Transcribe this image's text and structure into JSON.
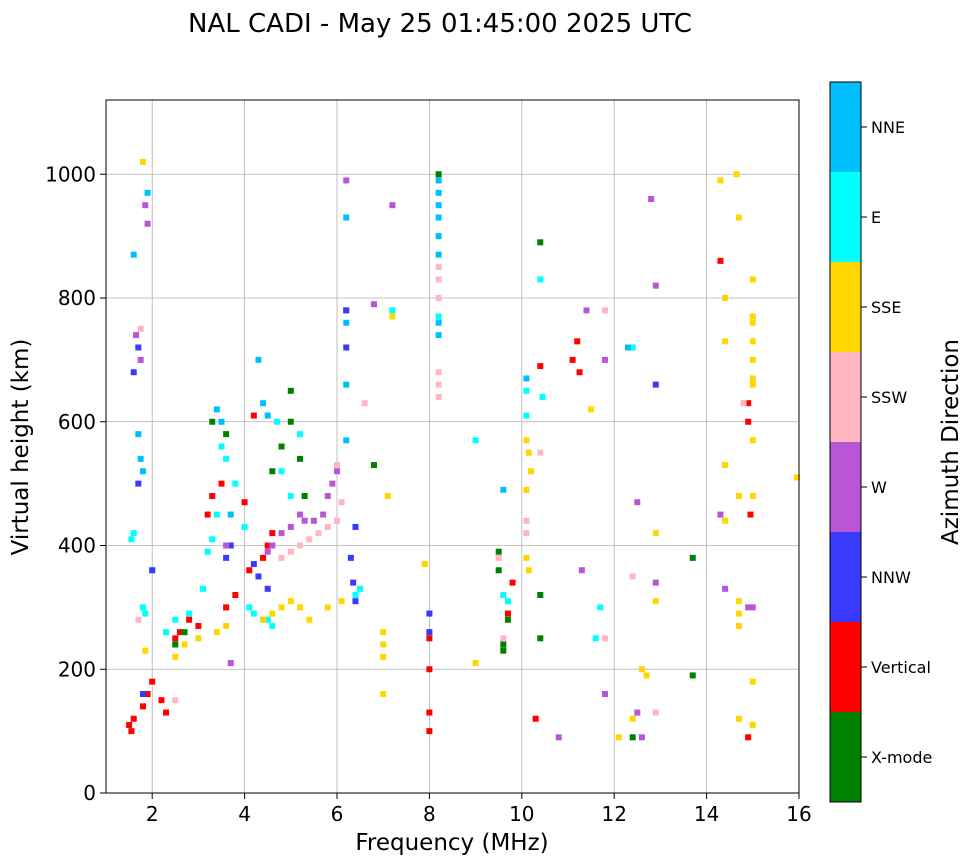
{
  "chart_data": {
    "type": "scatter",
    "title": "NAL CADI - May 25 01:45:00 2025 UTC",
    "xlabel": "Frequency (MHz)",
    "ylabel": "Virtual height (km)",
    "xlim": [
      1.0,
      16.0
    ],
    "ylim": [
      0,
      1120
    ],
    "xticks": [
      "2",
      "4",
      "6",
      "8",
      "10",
      "12",
      "14",
      "16"
    ],
    "yticks": [
      "0",
      "200",
      "400",
      "600",
      "800",
      "1000"
    ],
    "grid": true,
    "colorbar": {
      "label": "Azimuth Direction",
      "categories": [
        {
          "name": "X-mode",
          "color": "#008000"
        },
        {
          "name": "Vertical",
          "color": "#ff0000"
        },
        {
          "name": "NNW",
          "color": "#3a3aff"
        },
        {
          "name": "W",
          "color": "#b856d6"
        },
        {
          "name": "SSW",
          "color": "#ffb6c1"
        },
        {
          "name": "SSE",
          "color": "#ffd700"
        },
        {
          "name": "E",
          "color": "#00ffff"
        },
        {
          "name": "NNE",
          "color": "#00bfff"
        }
      ]
    },
    "series": [
      {
        "name": "E",
        "color": "#00ffff",
        "points": [
          [
            1.55,
            410
          ],
          [
            1.6,
            420
          ],
          [
            1.8,
            300
          ],
          [
            1.85,
            290
          ],
          [
            2.0,
            360
          ],
          [
            2.3,
            260
          ],
          [
            2.5,
            280
          ],
          [
            2.8,
            290
          ],
          [
            3.1,
            330
          ],
          [
            3.2,
            390
          ],
          [
            3.3,
            410
          ],
          [
            3.4,
            450
          ],
          [
            3.5,
            560
          ],
          [
            3.6,
            540
          ],
          [
            3.8,
            500
          ],
          [
            4.0,
            430
          ],
          [
            4.1,
            300
          ],
          [
            4.2,
            290
          ],
          [
            4.4,
            280
          ],
          [
            4.5,
            280
          ],
          [
            4.6,
            270
          ],
          [
            4.7,
            600
          ],
          [
            4.8,
            520
          ],
          [
            5.0,
            480
          ],
          [
            5.2,
            580
          ],
          [
            6.4,
            320
          ],
          [
            6.5,
            330
          ],
          [
            7.2,
            780
          ],
          [
            8.2,
            770
          ],
          [
            9.0,
            570
          ],
          [
            9.6,
            320
          ],
          [
            9.7,
            310
          ],
          [
            10.1,
            650
          ],
          [
            10.1,
            610
          ],
          [
            10.4,
            830
          ],
          [
            10.45,
            640
          ],
          [
            11.6,
            250
          ],
          [
            11.7,
            300
          ],
          [
            12.4,
            720
          ]
        ]
      },
      {
        "name": "NNE",
        "color": "#00bfff",
        "points": [
          [
            1.6,
            870
          ],
          [
            1.7,
            580
          ],
          [
            1.75,
            540
          ],
          [
            1.8,
            520
          ],
          [
            1.9,
            970
          ],
          [
            3.4,
            620
          ],
          [
            3.5,
            600
          ],
          [
            3.7,
            450
          ],
          [
            4.3,
            700
          ],
          [
            4.4,
            630
          ],
          [
            4.5,
            610
          ],
          [
            6.2,
            930
          ],
          [
            6.2,
            660
          ],
          [
            6.2,
            570
          ],
          [
            6.2,
            760
          ],
          [
            6.2,
            780
          ],
          [
            8.2,
            990
          ],
          [
            8.2,
            970
          ],
          [
            8.2,
            950
          ],
          [
            8.2,
            930
          ],
          [
            8.2,
            900
          ],
          [
            8.2,
            870
          ],
          [
            8.2,
            760
          ],
          [
            8.2,
            740
          ],
          [
            9.6,
            490
          ],
          [
            10.1,
            670
          ],
          [
            12.3,
            720
          ]
        ]
      },
      {
        "name": "Vertical",
        "color": "#ff0000",
        "points": [
          [
            1.5,
            110
          ],
          [
            1.55,
            100
          ],
          [
            1.6,
            120
          ],
          [
            1.8,
            140
          ],
          [
            1.9,
            160
          ],
          [
            2.0,
            180
          ],
          [
            2.2,
            150
          ],
          [
            2.3,
            130
          ],
          [
            2.5,
            250
          ],
          [
            2.6,
            260
          ],
          [
            2.8,
            280
          ],
          [
            3.0,
            270
          ],
          [
            3.2,
            450
          ],
          [
            3.3,
            480
          ],
          [
            3.5,
            500
          ],
          [
            3.6,
            300
          ],
          [
            3.8,
            320
          ],
          [
            4.0,
            470
          ],
          [
            4.1,
            360
          ],
          [
            4.2,
            610
          ],
          [
            4.4,
            380
          ],
          [
            4.5,
            400
          ],
          [
            4.6,
            420
          ],
          [
            8.0,
            250
          ],
          [
            8.0,
            200
          ],
          [
            8.0,
            130
          ],
          [
            8.0,
            100
          ],
          [
            9.7,
            290
          ],
          [
            9.8,
            340
          ],
          [
            10.3,
            120
          ],
          [
            10.4,
            690
          ],
          [
            11.1,
            700
          ],
          [
            11.2,
            730
          ],
          [
            11.25,
            680
          ],
          [
            14.3,
            860
          ],
          [
            14.9,
            600
          ],
          [
            14.9,
            630
          ],
          [
            14.95,
            450
          ],
          [
            14.9,
            90
          ]
        ]
      },
      {
        "name": "NNW",
        "color": "#3a3aff",
        "points": [
          [
            1.6,
            680
          ],
          [
            1.7,
            720
          ],
          [
            1.7,
            500
          ],
          [
            1.8,
            160
          ],
          [
            2.0,
            360
          ],
          [
            3.6,
            380
          ],
          [
            3.7,
            400
          ],
          [
            4.2,
            370
          ],
          [
            4.3,
            350
          ],
          [
            4.5,
            330
          ],
          [
            6.3,
            380
          ],
          [
            6.35,
            340
          ],
          [
            6.4,
            310
          ],
          [
            6.4,
            430
          ],
          [
            6.2,
            720
          ],
          [
            6.2,
            780
          ],
          [
            8.0,
            290
          ],
          [
            8.0,
            260
          ],
          [
            12.9,
            660
          ]
        ]
      },
      {
        "name": "W",
        "color": "#b856d6",
        "points": [
          [
            1.65,
            740
          ],
          [
            1.75,
            700
          ],
          [
            1.85,
            950
          ],
          [
            1.9,
            920
          ],
          [
            3.6,
            400
          ],
          [
            3.7,
            210
          ],
          [
            4.5,
            390
          ],
          [
            4.6,
            400
          ],
          [
            4.8,
            420
          ],
          [
            5.0,
            430
          ],
          [
            5.2,
            450
          ],
          [
            5.3,
            440
          ],
          [
            5.5,
            440
          ],
          [
            5.7,
            450
          ],
          [
            5.8,
            480
          ],
          [
            5.9,
            500
          ],
          [
            6.0,
            520
          ],
          [
            6.2,
            990
          ],
          [
            7.2,
            950
          ],
          [
            6.8,
            790
          ],
          [
            11.3,
            360
          ],
          [
            11.4,
            780
          ],
          [
            11.8,
            700
          ],
          [
            11.8,
            160
          ],
          [
            12.5,
            470
          ],
          [
            12.8,
            960
          ],
          [
            12.9,
            820
          ],
          [
            12.9,
            340
          ],
          [
            14.3,
            450
          ],
          [
            14.4,
            330
          ],
          [
            14.9,
            300
          ],
          [
            15.0,
            300
          ],
          [
            12.5,
            130
          ],
          [
            12.6,
            90
          ],
          [
            10.8,
            90
          ]
        ]
      },
      {
        "name": "SSW",
        "color": "#ffb6c1",
        "points": [
          [
            1.7,
            280
          ],
          [
            1.75,
            750
          ],
          [
            2.5,
            150
          ],
          [
            4.8,
            380
          ],
          [
            5.0,
            390
          ],
          [
            5.2,
            400
          ],
          [
            5.4,
            410
          ],
          [
            5.6,
            420
          ],
          [
            5.8,
            430
          ],
          [
            6.0,
            440
          ],
          [
            6.1,
            470
          ],
          [
            6.0,
            530
          ],
          [
            6.6,
            630
          ],
          [
            8.2,
            850
          ],
          [
            8.2,
            830
          ],
          [
            8.2,
            800
          ],
          [
            8.2,
            680
          ],
          [
            8.2,
            660
          ],
          [
            8.2,
            640
          ],
          [
            9.5,
            380
          ],
          [
            9.6,
            250
          ],
          [
            10.1,
            440
          ],
          [
            10.1,
            420
          ],
          [
            10.4,
            550
          ],
          [
            11.8,
            780
          ],
          [
            11.8,
            250
          ],
          [
            12.4,
            350
          ],
          [
            12.9,
            130
          ],
          [
            14.8,
            630
          ]
        ]
      },
      {
        "name": "SSE",
        "color": "#ffd700",
        "points": [
          [
            1.8,
            1020
          ],
          [
            1.85,
            230
          ],
          [
            2.5,
            220
          ],
          [
            2.7,
            240
          ],
          [
            3.0,
            250
          ],
          [
            3.4,
            260
          ],
          [
            3.6,
            270
          ],
          [
            4.4,
            280
          ],
          [
            4.6,
            290
          ],
          [
            4.8,
            300
          ],
          [
            5.0,
            310
          ],
          [
            5.2,
            300
          ],
          [
            5.4,
            280
          ],
          [
            5.8,
            300
          ],
          [
            6.1,
            310
          ],
          [
            7.0,
            260
          ],
          [
            7.0,
            240
          ],
          [
            7.0,
            220
          ],
          [
            7.0,
            160
          ],
          [
            7.1,
            480
          ],
          [
            7.2,
            770
          ],
          [
            7.9,
            370
          ],
          [
            9.0,
            210
          ],
          [
            10.1,
            570
          ],
          [
            10.15,
            550
          ],
          [
            10.2,
            520
          ],
          [
            10.1,
            490
          ],
          [
            10.1,
            380
          ],
          [
            10.15,
            360
          ],
          [
            11.5,
            620
          ],
          [
            12.1,
            90
          ],
          [
            12.4,
            120
          ],
          [
            12.6,
            200
          ],
          [
            12.7,
            190
          ],
          [
            12.9,
            420
          ],
          [
            12.9,
            310
          ],
          [
            14.3,
            990
          ],
          [
            14.4,
            800
          ],
          [
            14.4,
            730
          ],
          [
            14.4,
            530
          ],
          [
            14.4,
            440
          ],
          [
            14.65,
            1000
          ],
          [
            14.7,
            930
          ],
          [
            14.7,
            480
          ],
          [
            14.7,
            310
          ],
          [
            14.7,
            290
          ],
          [
            14.7,
            270
          ],
          [
            14.7,
            120
          ],
          [
            15.0,
            830
          ],
          [
            15.0,
            770
          ],
          [
            15.0,
            760
          ],
          [
            15.0,
            730
          ],
          [
            15.0,
            700
          ],
          [
            15.0,
            670
          ],
          [
            15.0,
            660
          ],
          [
            15.0,
            570
          ],
          [
            15.0,
            480
          ],
          [
            15.0,
            180
          ],
          [
            15.0,
            110
          ],
          [
            16.0,
            510
          ]
        ]
      },
      {
        "name": "X-mode",
        "color": "#008000",
        "points": [
          [
            2.5,
            240
          ],
          [
            2.7,
            260
          ],
          [
            3.3,
            600
          ],
          [
            3.6,
            580
          ],
          [
            4.6,
            520
          ],
          [
            4.8,
            560
          ],
          [
            5.0,
            650
          ],
          [
            5.0,
            600
          ],
          [
            5.2,
            540
          ],
          [
            5.3,
            480
          ],
          [
            6.8,
            530
          ],
          [
            8.2,
            1000
          ],
          [
            9.5,
            390
          ],
          [
            9.5,
            360
          ],
          [
            9.6,
            240
          ],
          [
            9.6,
            230
          ],
          [
            9.7,
            280
          ],
          [
            10.4,
            890
          ],
          [
            10.4,
            320
          ],
          [
            10.4,
            250
          ],
          [
            12.4,
            90
          ],
          [
            13.7,
            380
          ],
          [
            13.7,
            190
          ]
        ]
      }
    ]
  }
}
